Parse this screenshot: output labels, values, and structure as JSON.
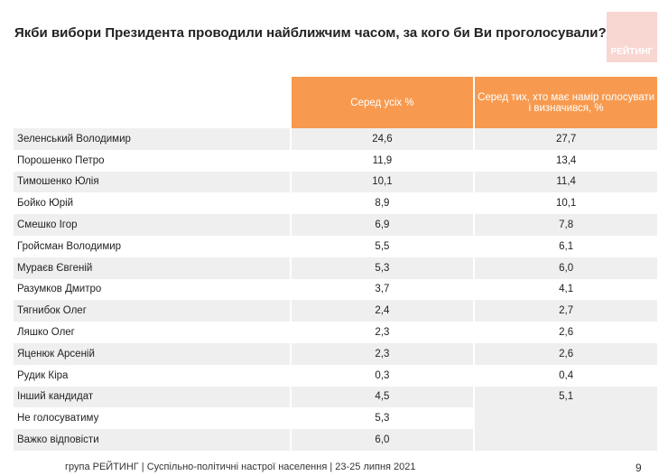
{
  "header": {
    "title": "Якби вибори Президента проводили найближчим часом, за кого би Ви проголосували?",
    "logo": "РЕЙТИНГ"
  },
  "table": {
    "columns": [
      "Серед усіх %",
      "Серед тих, хто має намір голосувати і визначився, %"
    ],
    "rows": [
      [
        "Зеленський Володимир",
        "24,6",
        "27,7"
      ],
      [
        "Порошенко Петро",
        "11,9",
        "13,4"
      ],
      [
        "Тимошенко Юлія",
        "10,1",
        "11,4"
      ],
      [
        "Бойко Юрій",
        "8,9",
        "10,1"
      ],
      [
        "Смешко Ігор",
        "6,9",
        "7,8"
      ],
      [
        "Гройсман Володимир",
        "5,5",
        "6,1"
      ],
      [
        "Мураєв Євгеній",
        "5,3",
        "6,0"
      ],
      [
        "Разумков Дмитро",
        "3,7",
        "4,1"
      ],
      [
        "Тягнибок Олег",
        "2,4",
        "2,7"
      ],
      [
        "Ляшко Олег",
        "2,3",
        "2,6"
      ],
      [
        "Яценюк  Арсеній",
        "2,3",
        "2,6"
      ],
      [
        "Рудик Кіра",
        "0,3",
        "0,4"
      ],
      [
        "Інший кандидат",
        "4,5",
        "5,1"
      ],
      [
        "Не голосуватиму",
        "5,3",
        null
      ],
      [
        "Важко відповісти",
        "6,0",
        null
      ]
    ]
  },
  "footer": {
    "text": "група РЕЙТИНГ | Суспільно-політичні настрої населення  | 23-25 липня 2021",
    "page": "9"
  }
}
